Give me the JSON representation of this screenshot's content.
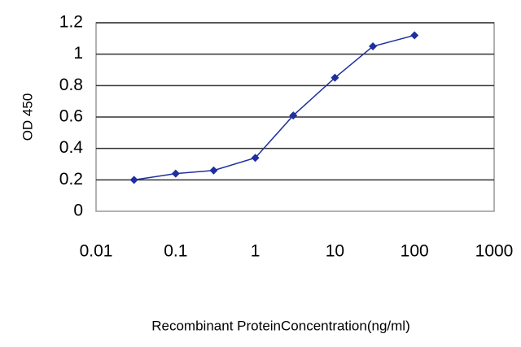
{
  "chart_data": {
    "type": "line",
    "x_label": "Recombinant ProteinConcentration(ng/ml)",
    "y_label": "OD 450",
    "x": [
      0.03,
      0.1,
      0.3,
      1,
      3,
      10,
      30,
      100
    ],
    "series": [
      {
        "color": "#1f2f9f",
        "values": [
          0.2,
          0.24,
          0.26,
          0.34,
          0.61,
          0.85,
          1.05,
          1.12
        ]
      }
    ],
    "xscale": "log",
    "xlim": [
      0.01,
      1000
    ],
    "xticks": [
      0.01,
      0.1,
      1,
      10,
      100,
      1000
    ],
    "ylim": [
      0,
      1.2
    ],
    "yticks": [
      0,
      0.2,
      0.4,
      0.6,
      0.8,
      1,
      1.2
    ],
    "grid": true
  }
}
